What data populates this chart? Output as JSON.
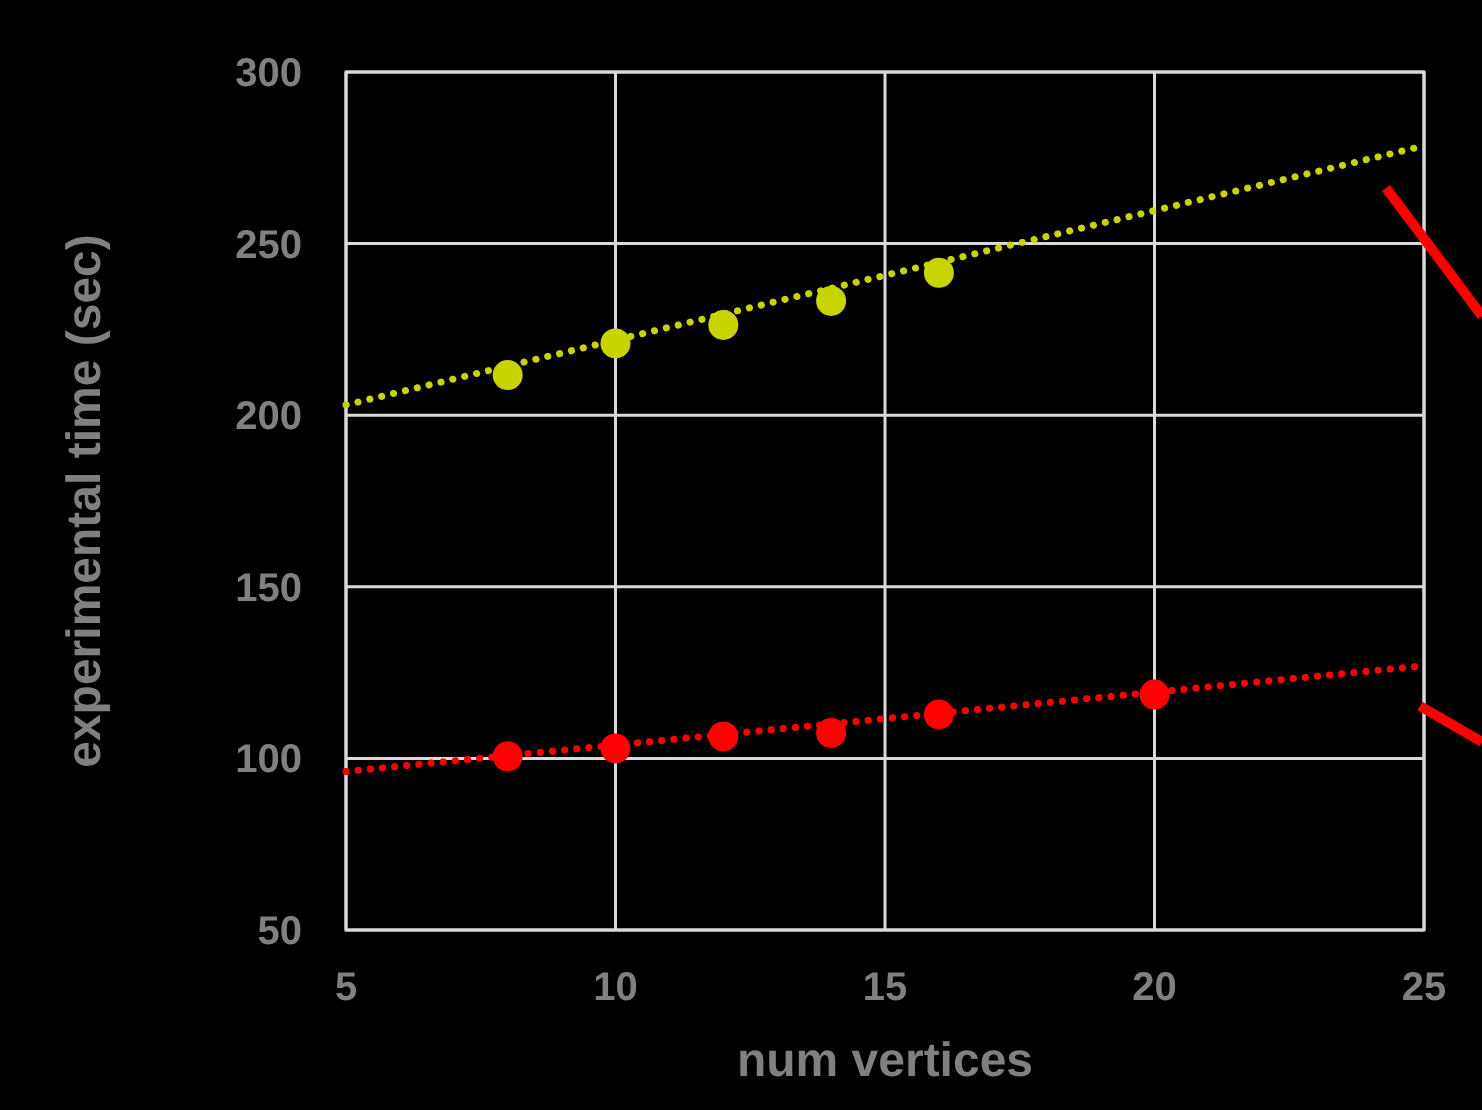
{
  "chart_data": {
    "type": "scatter",
    "xlabel": "num vertices",
    "ylabel": "experimental time (sec)",
    "xlim": [
      5,
      25
    ],
    "xticks": [
      5,
      10,
      15,
      20,
      25
    ],
    "ylim": [
      50,
      300
    ],
    "yticks": [
      50,
      100,
      150,
      200,
      250,
      300
    ],
    "grid": true,
    "marker": "circle",
    "series": [
      {
        "color": "#c8d400",
        "x": [
          8,
          10,
          12,
          14,
          16
        ],
        "values": [
          211.7,
          220.9,
          226.3,
          233.3,
          241.5
        ]
      },
      {
        "color": "#ff0000",
        "x": [
          8,
          10,
          12,
          14,
          16,
          20
        ],
        "values": [
          100.6,
          102.9,
          106.4,
          107.4,
          112.8,
          118.6
        ]
      },
      {
        "type": "line",
        "color": "#c8d400",
        "x": [
          5,
          25
        ],
        "values": [
          203,
          278.5
        ],
        "marker": "none",
        "line_style": "dotted"
      },
      {
        "type": "line",
        "color": "#ff0000",
        "x": [
          5,
          25
        ],
        "values": [
          96.2,
          127
        ],
        "marker": "none",
        "line_style": "dotted"
      }
    ]
  }
}
